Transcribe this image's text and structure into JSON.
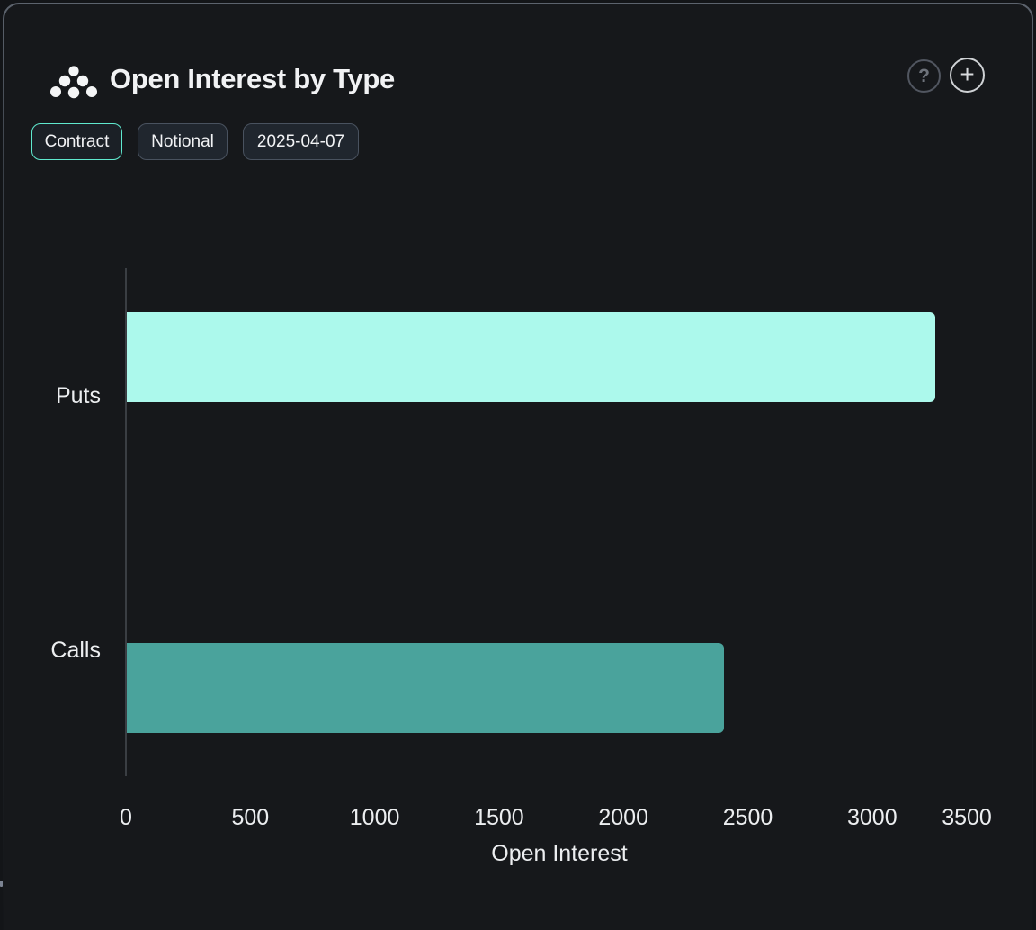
{
  "panel": {
    "title": "Open Interest by Type",
    "title_icon": "cluster-dots-icon"
  },
  "header_actions": [
    {
      "name": "help-button",
      "glyph": "?"
    },
    {
      "name": "add-button",
      "glyph": "+"
    }
  ],
  "toggles": [
    {
      "label": "Contract",
      "active": true
    },
    {
      "label": "Notional",
      "active": false
    },
    {
      "label": "2025-04-07",
      "active": false
    }
  ],
  "colors": {
    "accent_teal": "#5FE9CE",
    "bar_puts": "#ACF9EC",
    "bar_calls": "#4AA39C",
    "panel_bg": "#16181B",
    "chip_border": "#49525F",
    "axis_line": "#3A3E43",
    "text": "#ECEEF0"
  },
  "chart_data": {
    "type": "bar",
    "orientation": "horizontal",
    "title": "Open Interest by Type",
    "categories": [
      "Puts",
      "Calls"
    ],
    "values": [
      3250,
      2400
    ],
    "bar_colors": [
      "#ACF9EC",
      "#4AA39C"
    ],
    "xlabel": "Open Interest",
    "ylabel": "",
    "xlim": [
      0,
      3500
    ],
    "xticks": [
      0,
      500,
      1000,
      1500,
      2000,
      2500,
      3000,
      3500
    ],
    "grid": false,
    "legend": false
  }
}
